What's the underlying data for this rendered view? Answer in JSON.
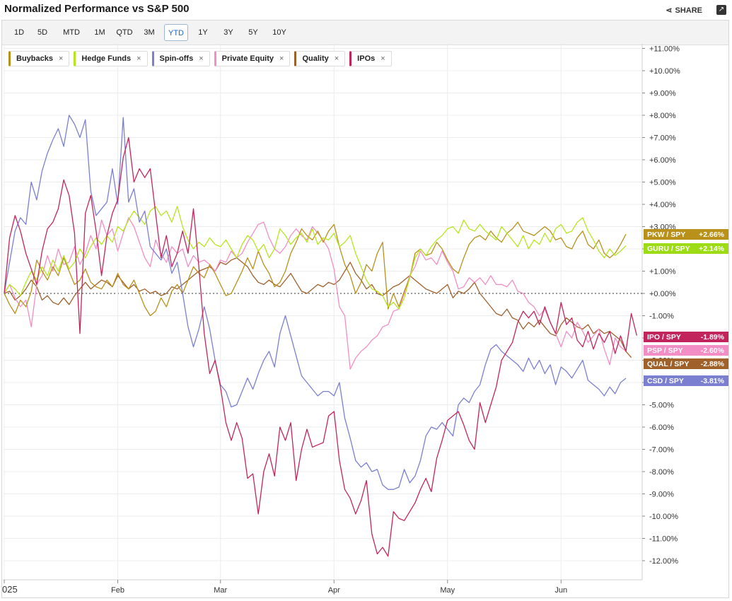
{
  "header": {
    "title": "Normalized Performance vs S&P 500",
    "share_label": "SHARE",
    "expand_icon": "expand-icon"
  },
  "ranges": [
    {
      "label": "1D",
      "active": false
    },
    {
      "label": "5D",
      "active": false
    },
    {
      "label": "MTD",
      "active": false
    },
    {
      "label": "1M",
      "active": false
    },
    {
      "label": "QTD",
      "active": false
    },
    {
      "label": "3M",
      "active": false
    },
    {
      "label": "YTD",
      "active": true
    },
    {
      "label": "1Y",
      "active": false
    },
    {
      "label": "3Y",
      "active": false
    },
    {
      "label": "5Y",
      "active": false
    },
    {
      "label": "10Y",
      "active": false
    }
  ],
  "legend": [
    {
      "label": "Buybacks",
      "color": "#b8901a",
      "close": "×"
    },
    {
      "label": "Hedge Funds",
      "color": "#b5e61d",
      "close": "×"
    },
    {
      "label": "Spin-offs",
      "color": "#7b7fd0",
      "close": "×"
    },
    {
      "label": "Private Equity",
      "color": "#f28dc6",
      "close": "×"
    },
    {
      "label": "Quality",
      "color": "#a0602a",
      "close": "×"
    },
    {
      "label": "IPOs",
      "color": "#c2255c",
      "close": "×"
    }
  ],
  "tags": [
    {
      "pair": "PKW / SPY",
      "value": "+2.66%",
      "color": "#b8901a",
      "y": 2.66
    },
    {
      "pair": "GURU / SPY",
      "value": "+2.14%",
      "color": "#9ddc14",
      "y": 2.14
    },
    {
      "pair": "IPO / SPY",
      "value": "-1.89%",
      "color": "#c2255c",
      "y": -1.89
    },
    {
      "pair": "PSP / SPY",
      "value": "-2.60%",
      "color": "#f28dc6",
      "y": -2.6
    },
    {
      "pair": "QUAL / SPY",
      "value": "-2.88%",
      "color": "#a0602a",
      "y": -2.88
    },
    {
      "pair": "CSD / SPY",
      "value": "-3.81%",
      "color": "#7b7fd0",
      "y": -3.81
    }
  ],
  "chart_data": {
    "type": "line",
    "title": "Normalized Performance vs S&P 500",
    "ylim": [
      -12.6,
      11.2
    ],
    "yticks": [
      {
        "v": 11,
        "label": "+11.00%"
      },
      {
        "v": 10,
        "label": "+10.00%"
      },
      {
        "v": 9,
        "label": "+9.00%"
      },
      {
        "v": 8,
        "label": "+8.00%"
      },
      {
        "v": 7,
        "label": "+7.00%"
      },
      {
        "v": 6,
        "label": "+6.00%"
      },
      {
        "v": 5,
        "label": "+5.00%"
      },
      {
        "v": 4,
        "label": "+4.00%"
      },
      {
        "v": 3,
        "label": "+3.00%"
      },
      {
        "v": 2,
        "label": "+2.00%"
      },
      {
        "v": 1,
        "label": "+1.00%"
      },
      {
        "v": 0,
        "label": "+0.00%"
      },
      {
        "v": -1,
        "label": "-1.00%"
      },
      {
        "v": -2,
        "label": "-2.00%"
      },
      {
        "v": -3,
        "label": "-3.00%"
      },
      {
        "v": -4,
        "label": "-4.00%"
      },
      {
        "v": -5,
        "label": "-5.00%"
      },
      {
        "v": -6,
        "label": "-6.00%"
      },
      {
        "v": -7,
        "label": "-7.00%"
      },
      {
        "v": -8,
        "label": "-8.00%"
      },
      {
        "v": -9,
        "label": "-9.00%"
      },
      {
        "v": -10,
        "label": "-10.00%"
      },
      {
        "v": -11,
        "label": "-11.00%"
      },
      {
        "v": -12,
        "label": "-12.00%"
      }
    ],
    "xticks": [
      {
        "i": 0,
        "label": "025"
      },
      {
        "i": 21,
        "label": "Feb"
      },
      {
        "i": 40,
        "label": "Mar"
      },
      {
        "i": 61,
        "label": "Apr"
      },
      {
        "i": 82,
        "label": "May"
      },
      {
        "i": 103,
        "label": "Jun"
      }
    ],
    "x_count": 116,
    "series": [
      {
        "name": "Buybacks",
        "color": "#b8901a",
        "values": [
          0,
          -0.5,
          -0.9,
          -0.3,
          -0.6,
          0.1,
          1.5,
          1.0,
          0.6,
          1.2,
          0.8,
          1.6,
          1.0,
          0.4,
          0.6,
          1.1,
          0.5,
          0.3,
          0.2,
          0.6,
          0.3,
          0.9,
          0.4,
          0.2,
          0.6,
          0.0,
          -0.6,
          -1.0,
          -0.8,
          -0.2,
          -0.6,
          0.1,
          0.4,
          0.0,
          0.6,
          1.2,
          0.9,
          0.7,
          1.3,
          0.9,
          0.4,
          -0.1,
          0.0,
          0.5,
          1.0,
          1.6,
          1.1,
          1.9,
          1.3,
          0.9,
          0.3,
          0.5,
          1.0,
          1.8,
          2.3,
          2.9,
          2.6,
          2.4,
          2.8,
          2.3,
          2.8,
          3.1,
          2.1,
          1.3,
          0.8,
          0.0,
          0.5,
          1.3,
          1.0,
          1.8,
          2.3,
          -0.7,
          0.0,
          -0.6,
          0.1,
          0.7,
          1.8,
          2.0,
          1.7,
          1.8,
          2.3,
          2.0,
          1.5,
          1.1,
          0.9,
          1.6,
          2.2,
          2.5,
          2.6,
          2.4,
          2.8,
          2.5,
          2.3,
          2.7,
          2.9,
          3.2,
          2.8,
          2.7,
          2.6,
          2.8,
          3.0,
          2.8,
          2.4,
          2.5,
          2.1,
          2.0,
          2.5,
          2.8,
          2.2,
          2.0,
          2.4,
          1.8,
          1.6,
          1.8,
          2.2,
          2.66
        ]
      },
      {
        "name": "Hedge Funds",
        "color": "#b5e61d",
        "values": [
          0,
          0.4,
          0.2,
          -0.1,
          0.5,
          1.0,
          0.6,
          1.2,
          0.8,
          1.5,
          1.0,
          1.7,
          1.1,
          1.4,
          2.0,
          1.6,
          2.1,
          2.5,
          2.2,
          2.6,
          2.3,
          3.0,
          2.8,
          3.3,
          3.7,
          3.4,
          3.1,
          3.7,
          3.9,
          3.5,
          3.7,
          3.2,
          3.9,
          3.0,
          2.4,
          2.0,
          2.3,
          2.1,
          2.5,
          2.2,
          2.1,
          2.4,
          2.0,
          1.6,
          2.2,
          2.6,
          2.4,
          1.9,
          2.2,
          1.6,
          2.0,
          2.9,
          2.6,
          2.2,
          2.5,
          2.7,
          2.3,
          2.9,
          2.2,
          2.5,
          2.4,
          2.7,
          2.1,
          2.3,
          2.6,
          1.8,
          1.2,
          0.6,
          0.2,
          0.1,
          -0.1,
          -0.6,
          -0.4,
          -0.7,
          -0.2,
          0.7,
          1.6,
          2.0,
          1.7,
          2.1,
          2.4,
          2.6,
          2.9,
          3.0,
          2.7,
          3.3,
          2.9,
          2.8,
          3.1,
          2.8,
          2.6,
          2.4,
          3.0,
          2.7,
          2.4,
          2.1,
          2.6,
          2.0,
          2.4,
          2.2,
          2.7,
          2.3,
          2.9,
          3.1,
          2.7,
          2.8,
          3.2,
          3.4,
          2.8,
          2.4,
          1.9,
          1.6,
          2.0,
          1.7,
          1.9,
          2.14
        ]
      },
      {
        "name": "Spin-offs",
        "color": "#7b7fd0",
        "values": [
          0,
          1.4,
          2.8,
          3.4,
          3.1,
          5.0,
          4.2,
          5.5,
          6.3,
          6.9,
          7.4,
          6.6,
          8.0,
          7.6,
          7.0,
          7.8,
          4.6,
          3.5,
          3.8,
          4.1,
          5.6,
          4.0,
          7.9,
          4.1,
          4.7,
          3.2,
          3.7,
          2.1,
          1.8,
          1.5,
          2.0,
          0.9,
          1.4,
          0.0,
          -1.5,
          -2.4,
          -1.6,
          -0.6,
          -1.6,
          -3.0,
          -4.1,
          -4.4,
          -5.1,
          -5.0,
          -4.4,
          -3.8,
          -4.3,
          -3.6,
          -3.0,
          -2.6,
          -3.3,
          -1.8,
          -1.0,
          -1.9,
          -2.8,
          -3.7,
          -4.0,
          -4.3,
          -4.6,
          -4.4,
          -4.4,
          -4.6,
          -4.0,
          -5.6,
          -6.5,
          -7.5,
          -7.8,
          -7.6,
          -8.0,
          -7.9,
          -8.6,
          -8.8,
          -8.8,
          -8.7,
          -7.9,
          -8.5,
          -8.2,
          -7.5,
          -6.4,
          -6.0,
          -6.1,
          -5.8,
          -6.1,
          -6.4,
          -5.0,
          -4.7,
          -4.9,
          -4.4,
          -4.1,
          -3.2,
          -2.5,
          -2.3,
          -2.6,
          -2.8,
          -3.0,
          -3.2,
          -3.5,
          -2.9,
          -3.4,
          -3.0,
          -3.6,
          -3.2,
          -4.1,
          -3.3,
          -3.5,
          -3.8,
          -3.4,
          -3.0,
          -3.9,
          -4.1,
          -4.3,
          -4.6,
          -4.2,
          -4.5,
          -4.0,
          -3.81
        ]
      },
      {
        "name": "Private Equity",
        "color": "#f28dc6",
        "values": [
          0,
          0.4,
          -0.2,
          -0.6,
          -0.3,
          -1.5,
          0.4,
          0.8,
          1.7,
          1.0,
          2.0,
          1.3,
          1.4,
          2.1,
          1.3,
          1.8,
          2.6,
          2.0,
          3.3,
          2.6,
          2.9,
          1.9,
          2.7,
          3.4,
          3.0,
          2.3,
          1.6,
          1.2,
          2.4,
          1.8,
          1.4,
          2.1,
          1.8,
          2.0,
          1.2,
          1.7,
          1.4,
          1.5,
          1.3,
          1.0,
          1.5,
          1.4,
          1.9,
          1.6,
          1.8,
          2.3,
          2.7,
          3.1,
          3.2,
          2.5,
          2.0,
          1.8,
          2.1,
          2.6,
          2.9,
          2.6,
          2.4,
          3.0,
          2.7,
          2.4,
          2.0,
          1.1,
          -0.6,
          -1.0,
          -3.4,
          -2.9,
          -2.6,
          -2.4,
          -2.1,
          -1.9,
          -1.5,
          -1.4,
          -0.8,
          -0.7,
          0.0,
          0.8,
          1.2,
          1.9,
          1.5,
          1.6,
          1.3,
          1.9,
          1.4,
          1.0,
          0.2,
          0.3,
          0.7,
          0.5,
          0.7,
          0.4,
          0.8,
          0.4,
          0.4,
          0.3,
          0.6,
          0.1,
          0.0,
          -0.4,
          -0.6,
          -1.0,
          -0.7,
          -1.3,
          -1.8,
          -2.4,
          -1.7,
          -2.0,
          -1.3,
          -1.7,
          -2.2,
          -1.9,
          -1.6,
          -2.5,
          -3.2,
          -2.0,
          -2.4,
          -2.6
        ]
      },
      {
        "name": "Quality",
        "color": "#a0602a",
        "values": [
          0,
          0.1,
          -0.3,
          -0.1,
          0.2,
          0.6,
          0.3,
          -0.3,
          -0.1,
          -0.4,
          -0.5,
          -0.2,
          -0.5,
          -0.1,
          0.2,
          0.5,
          0.2,
          0.4,
          0.6,
          0.5,
          0.3,
          0.8,
          0.5,
          0.2,
          0.4,
          0.1,
          0.2,
          0.0,
          0.1,
          -0.1,
          0.0,
          0.3,
          0.2,
          0.4,
          0.6,
          0.8,
          1.0,
          1.1,
          1.2,
          1.0,
          1.4,
          1.3,
          1.5,
          1.6,
          1.4,
          1.2,
          0.8,
          0.5,
          0.4,
          0.6,
          0.4,
          0.3,
          0.6,
          0.9,
          0.5,
          0.1,
          0.0,
          0.2,
          0.4,
          0.3,
          0.5,
          0.4,
          0.6,
          1.0,
          1.4,
          0.9,
          0.6,
          0.2,
          0.4,
          0.0,
          -0.1,
          0.1,
          0.3,
          0.4,
          0.6,
          0.8,
          0.6,
          0.4,
          0.2,
          0.1,
          0.0,
          0.2,
          0.4,
          -0.2,
          0.1,
          0.0,
          0.2,
          0.5,
          0.0,
          -0.3,
          -0.6,
          -0.9,
          -1.0,
          -0.7,
          -1.1,
          -1.2,
          -1.6,
          -1.3,
          -1.5,
          -1.2,
          -1.5,
          -1.8,
          -1.9,
          -1.4,
          -1.1,
          -1.3,
          -1.5,
          -1.6,
          -1.4,
          -1.8,
          -1.6,
          -1.8,
          -1.7,
          -1.9,
          -2.1,
          -2.6,
          -2.88
        ]
      },
      {
        "name": "IPOs",
        "color": "#c2255c",
        "values": [
          0,
          2.5,
          3.5,
          2.8,
          1.8,
          1.1,
          0.4,
          1.9,
          2.9,
          3.2,
          3.8,
          5.1,
          4.4,
          2.7,
          -1.8,
          3.6,
          4.4,
          2.8,
          0.8,
          2.6,
          3.6,
          4.2,
          6.1,
          7.0,
          5.0,
          5.6,
          5.2,
          5.6,
          3.6,
          1.6,
          2.6,
          1.2,
          1.8,
          2.8,
          1.8,
          3.8,
          1.2,
          -1.8,
          -3.6,
          -3.0,
          -4.2,
          -5.8,
          -6.6,
          -5.8,
          -6.5,
          -8.3,
          -8.1,
          -9.9,
          -8.0,
          -7.2,
          -8.2,
          -6.0,
          -6.6,
          -5.8,
          -8.4,
          -7.0,
          -6.1,
          -6.9,
          -6.8,
          -6.7,
          -5.5,
          -5.3,
          -7.5,
          -8.8,
          -9.2,
          -9.9,
          -9.3,
          -8.4,
          -10.8,
          -11.7,
          -11.4,
          -11.8,
          -9.8,
          -10.1,
          -10.2,
          -9.8,
          -9.4,
          -8.8,
          -8.3,
          -8.9,
          -7.4,
          -6.6,
          -5.7,
          -5.5,
          -5.3,
          -5.9,
          -6.6,
          -7.0,
          -4.9,
          -5.8,
          -5.0,
          -4.2,
          -3.0,
          -2.6,
          -2.2,
          -1.3,
          -0.8,
          -1.1,
          -0.8,
          -1.4,
          -0.6,
          -1.3,
          -1.8,
          -0.4,
          -1.4,
          -1.1,
          -2.1,
          -2.4,
          -1.7,
          -2.5,
          -1.8,
          -2.2,
          -1.7,
          -2.7,
          -1.9,
          -2.6,
          -0.9,
          -1.89
        ]
      }
    ]
  }
}
